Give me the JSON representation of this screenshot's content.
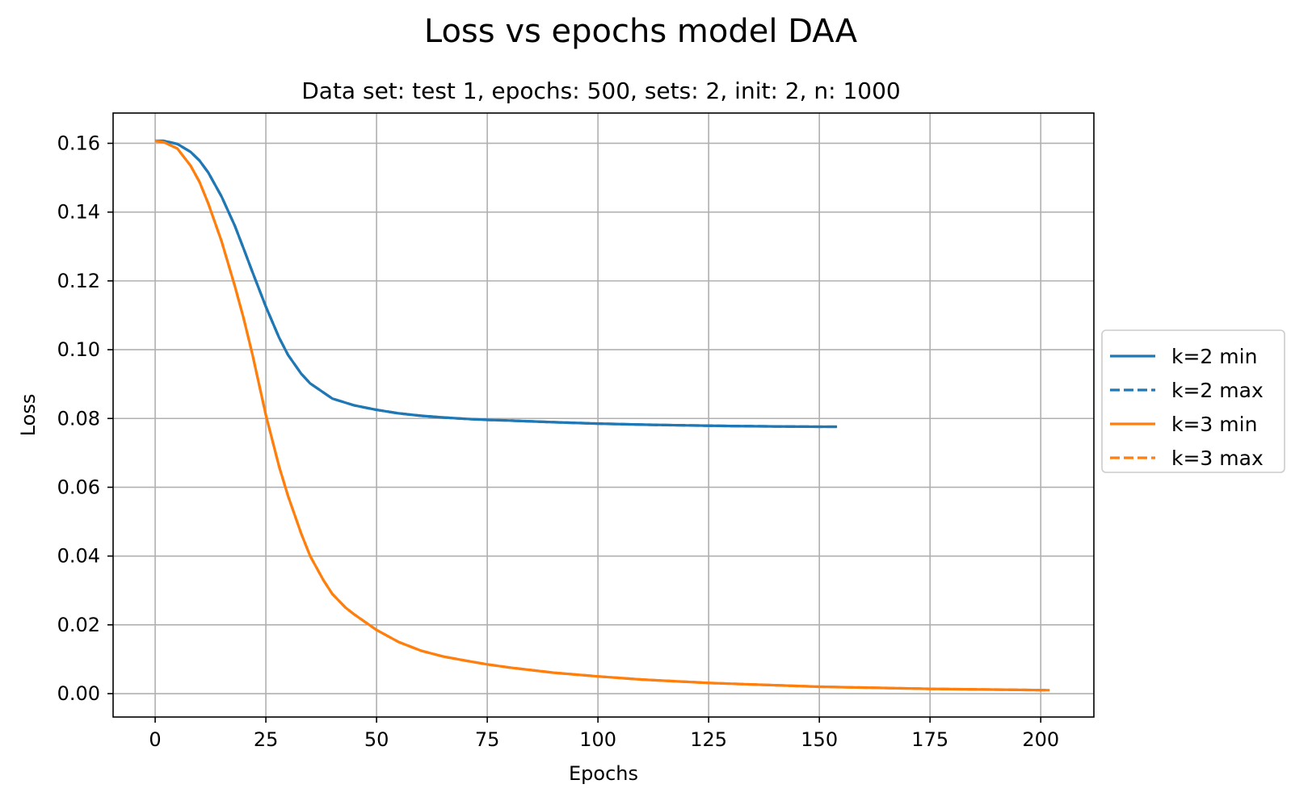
{
  "chart_data": {
    "type": "line",
    "title": "Loss vs epochs model DAA",
    "subtitle": "Data set: test 1, epochs: 500, sets: 2, init: 2, n: 1000",
    "xlabel": "Epochs",
    "ylabel": "Loss",
    "xlim": [
      -9.5,
      212
    ],
    "ylim": [
      -0.0068,
      0.1688
    ],
    "xticks": [
      0,
      25,
      50,
      75,
      100,
      125,
      150,
      175,
      200
    ],
    "yticks": [
      0.0,
      0.02,
      0.04,
      0.06,
      0.08,
      0.1,
      0.12,
      0.14,
      0.16
    ],
    "grid": true,
    "legend_position": "center-right-outside",
    "series": [
      {
        "name": "k=2 min",
        "color": "#1f77b4",
        "style": "solid",
        "x": [
          0,
          2,
          5,
          8,
          10,
          12,
          15,
          18,
          20,
          22,
          25,
          28,
          30,
          33,
          35,
          40,
          45,
          50,
          55,
          60,
          65,
          70,
          75,
          80,
          90,
          100,
          110,
          120,
          130,
          140,
          150,
          154
        ],
        "y": [
          0.1607,
          0.1607,
          0.1598,
          0.1575,
          0.155,
          0.1515,
          0.1445,
          0.136,
          0.1293,
          0.1225,
          0.1125,
          0.1035,
          0.0985,
          0.093,
          0.0902,
          0.0858,
          0.0838,
          0.0825,
          0.0815,
          0.0808,
          0.0803,
          0.0799,
          0.0796,
          0.0794,
          0.0789,
          0.0785,
          0.0782,
          0.078,
          0.0778,
          0.0777,
          0.0776,
          0.0776
        ]
      },
      {
        "name": "k=2 max",
        "color": "#1f77b4",
        "style": "dashed",
        "x": [
          0,
          2,
          5,
          8,
          10,
          12,
          15,
          18,
          20,
          22,
          25,
          28,
          30,
          33,
          35,
          40,
          45,
          50,
          55,
          60,
          65,
          70,
          75,
          80,
          90,
          100,
          110,
          120,
          130,
          140,
          150,
          154
        ],
        "y": [
          0.1607,
          0.1607,
          0.1598,
          0.1575,
          0.155,
          0.1515,
          0.1445,
          0.136,
          0.1293,
          0.1225,
          0.1125,
          0.1035,
          0.0985,
          0.093,
          0.0902,
          0.0858,
          0.0838,
          0.0825,
          0.0815,
          0.0808,
          0.0803,
          0.0799,
          0.0796,
          0.0794,
          0.0789,
          0.0785,
          0.0782,
          0.078,
          0.0778,
          0.0777,
          0.0776,
          0.0776
        ]
      },
      {
        "name": "k=3 min",
        "color": "#ff7f0e",
        "style": "solid",
        "x": [
          0,
          2,
          5,
          8,
          10,
          12,
          15,
          18,
          20,
          22,
          25,
          28,
          30,
          33,
          35,
          38,
          40,
          43,
          45,
          50,
          55,
          60,
          65,
          70,
          75,
          80,
          90,
          100,
          110,
          125,
          150,
          175,
          202
        ],
        "y": [
          0.1607,
          0.1603,
          0.1585,
          0.1535,
          0.1488,
          0.1425,
          0.1315,
          0.1185,
          0.109,
          0.0985,
          0.081,
          0.066,
          0.0575,
          0.0465,
          0.04,
          0.033,
          0.029,
          0.025,
          0.023,
          0.0185,
          0.015,
          0.0125,
          0.0108,
          0.0096,
          0.0085,
          0.0076,
          0.0061,
          0.005,
          0.0041,
          0.0031,
          0.002,
          0.0014,
          0.001
        ]
      },
      {
        "name": "k=3 max",
        "color": "#ff7f0e",
        "style": "dashed",
        "x": [
          0,
          2,
          5,
          8,
          10,
          12,
          15,
          18,
          20,
          22,
          25,
          28,
          30,
          33,
          35,
          38,
          40,
          43,
          45,
          50,
          55,
          60,
          65,
          70,
          75,
          80,
          90,
          100,
          110,
          125,
          150,
          175,
          202
        ],
        "y": [
          0.1607,
          0.1603,
          0.1585,
          0.1535,
          0.1488,
          0.1425,
          0.1315,
          0.1185,
          0.109,
          0.0985,
          0.081,
          0.066,
          0.0575,
          0.0465,
          0.04,
          0.033,
          0.029,
          0.025,
          0.023,
          0.0185,
          0.015,
          0.0125,
          0.0108,
          0.0096,
          0.0085,
          0.0076,
          0.0061,
          0.005,
          0.0041,
          0.0031,
          0.002,
          0.0014,
          0.001
        ]
      }
    ]
  }
}
